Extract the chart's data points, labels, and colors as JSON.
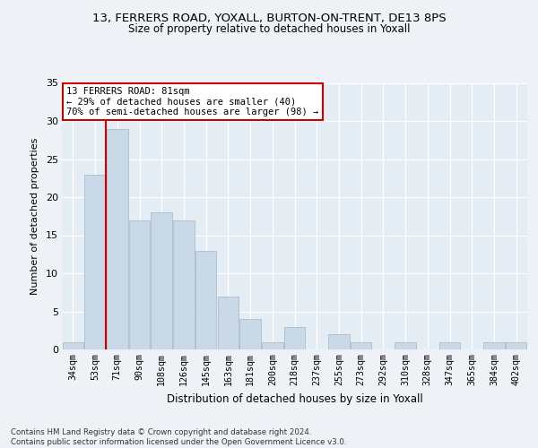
{
  "title1": "13, FERRERS ROAD, YOXALL, BURTON-ON-TRENT, DE13 8PS",
  "title2": "Size of property relative to detached houses in Yoxall",
  "xlabel": "Distribution of detached houses by size in Yoxall",
  "ylabel": "Number of detached properties",
  "categories": [
    "34sqm",
    "53sqm",
    "71sqm",
    "90sqm",
    "108sqm",
    "126sqm",
    "145sqm",
    "163sqm",
    "181sqm",
    "200sqm",
    "218sqm",
    "237sqm",
    "255sqm",
    "273sqm",
    "292sqm",
    "310sqm",
    "328sqm",
    "347sqm",
    "365sqm",
    "384sqm",
    "402sqm"
  ],
  "values": [
    1,
    23,
    29,
    17,
    18,
    17,
    13,
    7,
    4,
    1,
    3,
    0,
    2,
    1,
    0,
    1,
    0,
    1,
    0,
    1,
    1
  ],
  "bar_color": "#c9d9e8",
  "bar_edge_color": "#aabccc",
  "vline_x": 1.5,
  "vline_color": "#cc0000",
  "annotation_text": "13 FERRERS ROAD: 81sqm\n← 29% of detached houses are smaller (40)\n70% of semi-detached houses are larger (98) →",
  "annotation_box_color": "#ffffff",
  "annotation_box_edge": "#cc0000",
  "ylim": [
    0,
    35
  ],
  "yticks": [
    0,
    5,
    10,
    15,
    20,
    25,
    30,
    35
  ],
  "footer": "Contains HM Land Registry data © Crown copyright and database right 2024.\nContains public sector information licensed under the Open Government Licence v3.0.",
  "background_color": "#eef2f7",
  "plot_bg_color": "#e4ecf4"
}
